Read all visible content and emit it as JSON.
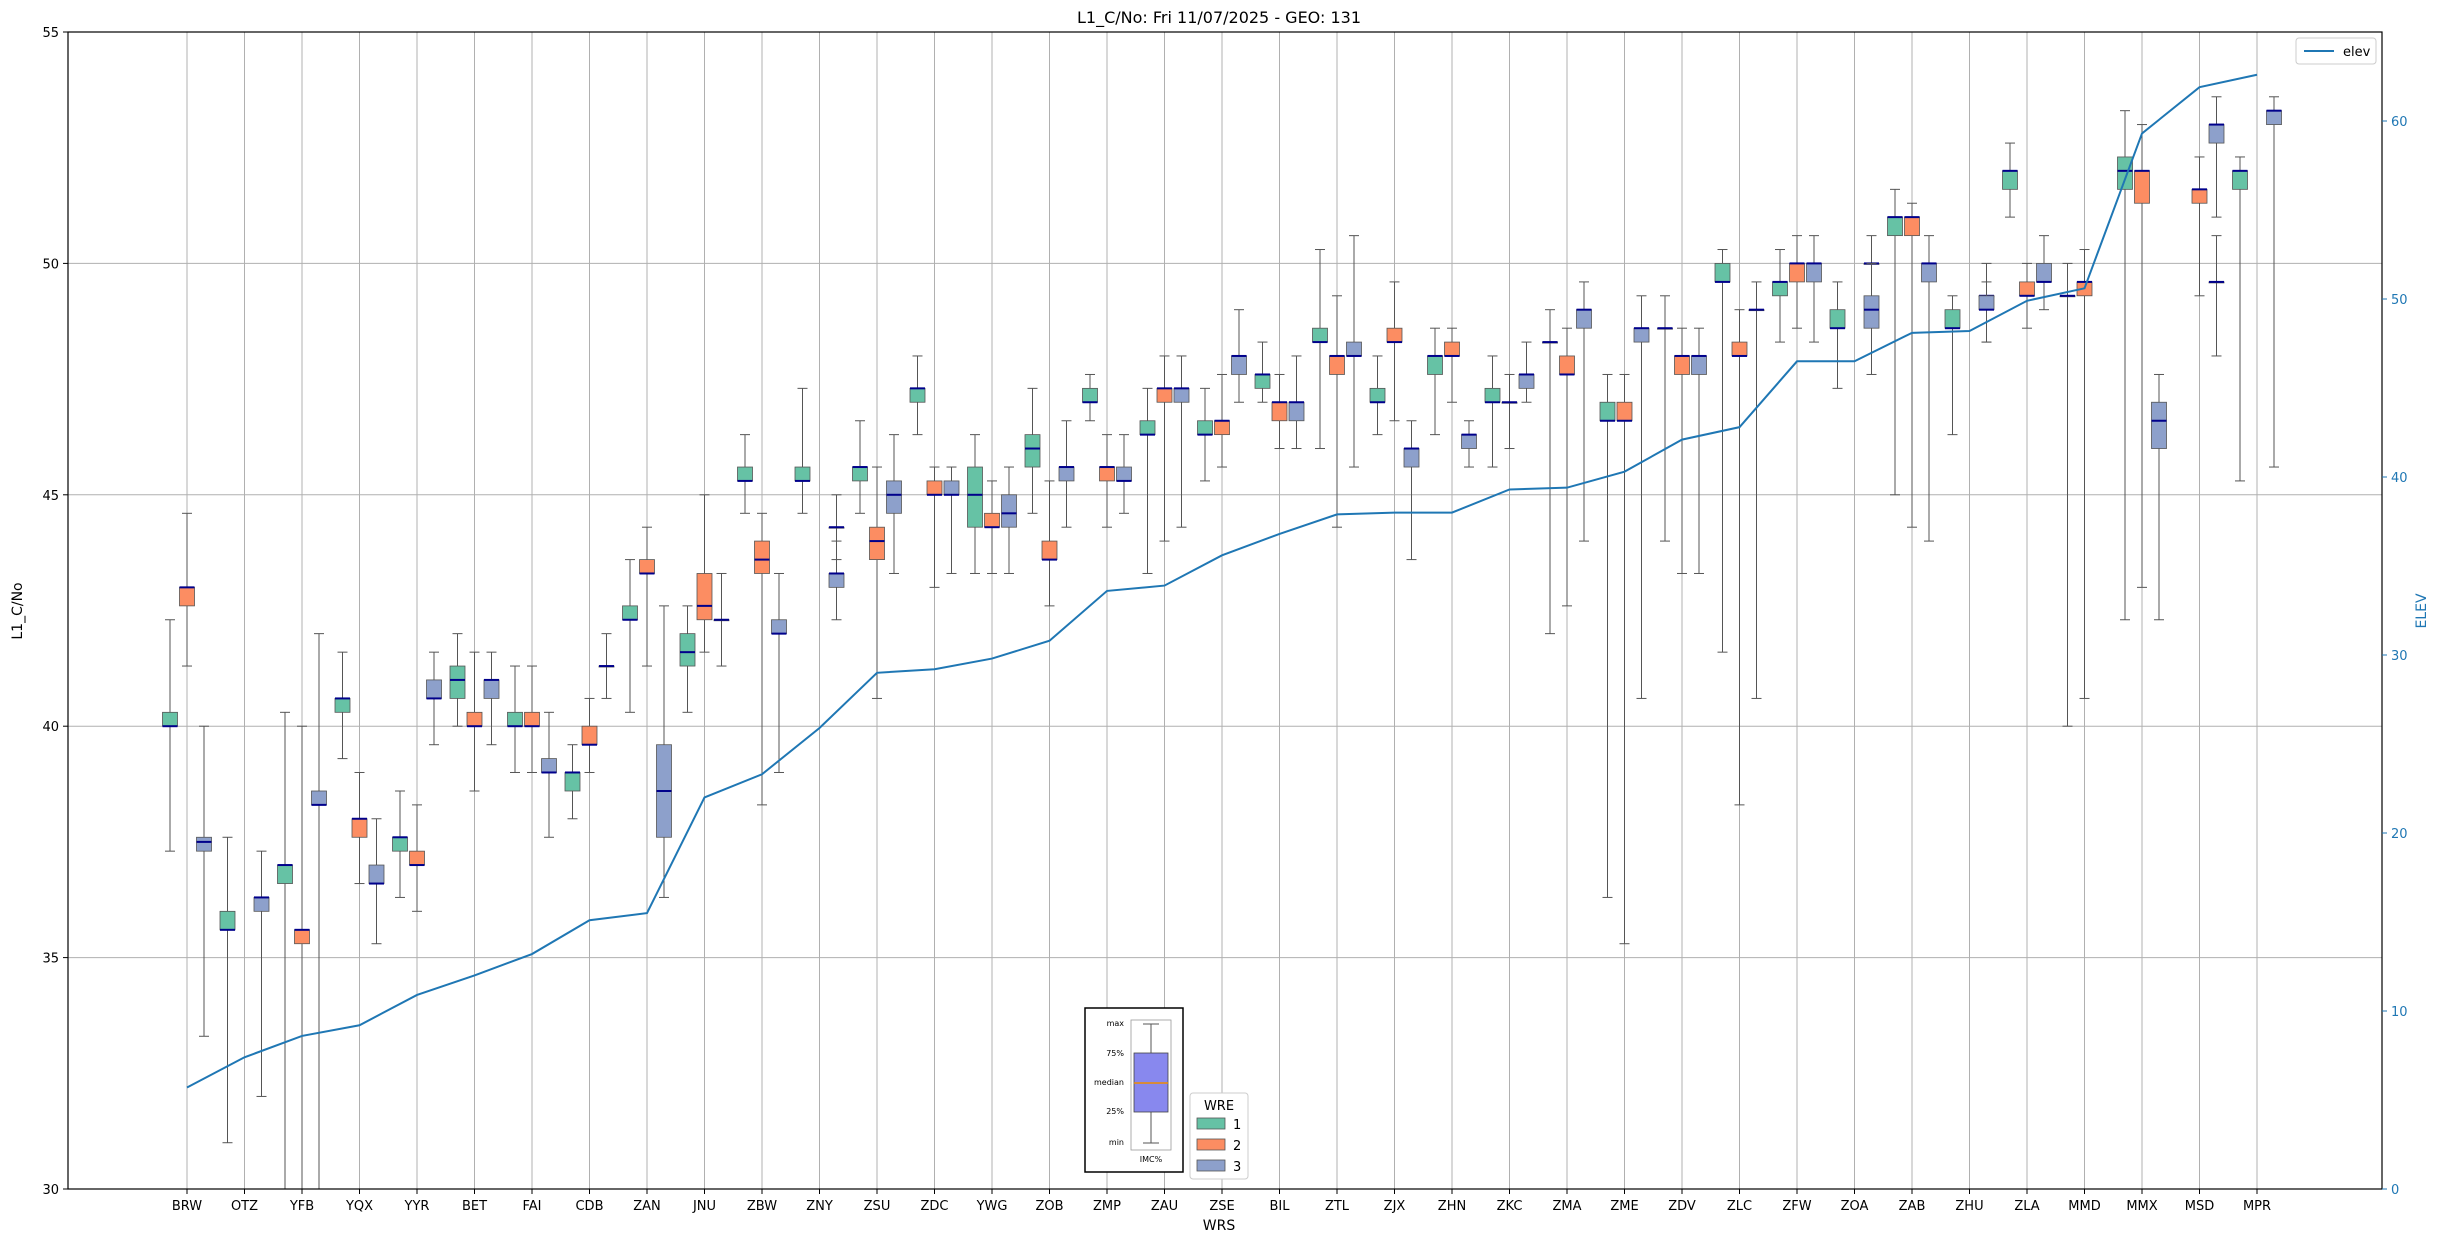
{
  "chart_data": {
    "type": "boxplot",
    "title": "L1_C/No: Fri 11/07/2025 - GEO: 131",
    "xlabel": "WRS",
    "ylabel": "L1_C/No",
    "y2label": "ELEV",
    "ylim": [
      30,
      55
    ],
    "y2lim": [
      0,
      65
    ],
    "yticks": [
      30,
      35,
      40,
      45,
      50,
      55
    ],
    "y2ticks": [
      0,
      10,
      20,
      30,
      40,
      50,
      60
    ],
    "grid": true,
    "categories": [
      "BRW",
      "OTZ",
      "YFB",
      "YQX",
      "YYR",
      "BET",
      "FAI",
      "CDB",
      "ZAN",
      "JNU",
      "ZBW",
      "ZNY",
      "ZSU",
      "ZDC",
      "YWG",
      "ZOB",
      "ZMP",
      "ZAU",
      "ZSE",
      "BIL",
      "ZTL",
      "ZJX",
      "ZHN",
      "ZKC",
      "ZMA",
      "ZME",
      "ZDV",
      "ZLC",
      "ZFW",
      "ZOA",
      "ZAB",
      "ZHU",
      "ZLA",
      "MMD",
      "MMX",
      "MSD",
      "MPR"
    ],
    "wre_colors": {
      "1": "#66c2a5",
      "2": "#fc8d62",
      "3": "#8da0cb"
    },
    "median_color": "#00008b",
    "elev_color": "#1f77b4",
    "boxes": [
      {
        "cat": "BRW",
        "wre": "1",
        "min": 37.3,
        "q1": 40.0,
        "median": 40.0,
        "q3": 40.3,
        "max": 42.3
      },
      {
        "cat": "BRW",
        "wre": "2",
        "min": 41.3,
        "q1": 42.6,
        "median": 43.0,
        "q3": 43.0,
        "max": 44.6
      },
      {
        "cat": "BRW",
        "wre": "3",
        "min": 33.3,
        "q1": 37.3,
        "median": 37.5,
        "q3": 37.6,
        "max": 40.0
      },
      {
        "cat": "OTZ",
        "wre": "1",
        "min": 31.0,
        "q1": 35.6,
        "median": 35.6,
        "q3": 36.0,
        "max": 37.6
      },
      {
        "cat": "OTZ",
        "wre": "3",
        "min": 32.0,
        "q1": 36.0,
        "median": 36.3,
        "q3": 36.3,
        "max": 37.3
      },
      {
        "cat": "YFB",
        "wre": "1",
        "min": 30.0,
        "q1": 36.6,
        "median": 37.0,
        "q3": 37.0,
        "max": 40.3
      },
      {
        "cat": "YFB",
        "wre": "2",
        "min": 30.0,
        "q1": 35.3,
        "median": 35.6,
        "q3": 35.6,
        "max": 40.0
      },
      {
        "cat": "YFB",
        "wre": "3",
        "min": 30.0,
        "q1": 38.3,
        "median": 38.3,
        "q3": 38.6,
        "max": 42.0
      },
      {
        "cat": "YQX",
        "wre": "1",
        "min": 39.3,
        "q1": 40.3,
        "median": 40.6,
        "q3": 40.6,
        "max": 41.6
      },
      {
        "cat": "YQX",
        "wre": "2",
        "min": 36.6,
        "q1": 37.6,
        "median": 38.0,
        "q3": 38.0,
        "max": 39.0
      },
      {
        "cat": "YQX",
        "wre": "3",
        "min": 35.3,
        "q1": 36.6,
        "median": 36.6,
        "q3": 37.0,
        "max": 38.0
      },
      {
        "cat": "YYR",
        "wre": "1",
        "min": 36.3,
        "q1": 37.3,
        "median": 37.6,
        "q3": 37.6,
        "max": 38.6
      },
      {
        "cat": "YYR",
        "wre": "2",
        "min": 36.0,
        "q1": 37.0,
        "median": 37.0,
        "q3": 37.3,
        "max": 38.3
      },
      {
        "cat": "YYR",
        "wre": "3",
        "min": 39.6,
        "q1": 40.6,
        "median": 40.6,
        "q3": 41.0,
        "max": 41.6
      },
      {
        "cat": "BET",
        "wre": "1",
        "min": 40.0,
        "q1": 40.6,
        "median": 41.0,
        "q3": 41.3,
        "max": 42.0
      },
      {
        "cat": "BET",
        "wre": "2",
        "min": 38.6,
        "q1": 40.0,
        "median": 40.0,
        "q3": 40.3,
        "max": 41.6
      },
      {
        "cat": "BET",
        "wre": "3",
        "min": 39.6,
        "q1": 40.6,
        "median": 41.0,
        "q3": 41.0,
        "max": 41.6
      },
      {
        "cat": "FAI",
        "wre": "1",
        "min": 39.0,
        "q1": 40.0,
        "median": 40.0,
        "q3": 40.3,
        "max": 41.3
      },
      {
        "cat": "FAI",
        "wre": "2",
        "min": 39.0,
        "q1": 40.0,
        "median": 40.0,
        "q3": 40.3,
        "max": 41.3
      },
      {
        "cat": "FAI",
        "wre": "3",
        "min": 37.6,
        "q1": 39.0,
        "median": 39.0,
        "q3": 39.3,
        "max": 40.3
      },
      {
        "cat": "CDB",
        "wre": "1",
        "min": 38.0,
        "q1": 38.6,
        "median": 39.0,
        "q3": 39.0,
        "max": 39.6
      },
      {
        "cat": "CDB",
        "wre": "2",
        "min": 39.0,
        "q1": 39.6,
        "median": 39.6,
        "q3": 40.0,
        "max": 40.6
      },
      {
        "cat": "CDB",
        "wre": "3",
        "min": 40.6,
        "q1": 41.3,
        "median": 41.3,
        "q3": 41.3,
        "max": 42.0
      },
      {
        "cat": "ZAN",
        "wre": "1",
        "min": 40.3,
        "q1": 42.3,
        "median": 42.3,
        "q3": 42.6,
        "max": 43.6
      },
      {
        "cat": "ZAN",
        "wre": "2",
        "min": 41.3,
        "q1": 43.3,
        "median": 43.3,
        "q3": 43.6,
        "max": 44.3
      },
      {
        "cat": "ZAN",
        "wre": "3",
        "min": 36.3,
        "q1": 37.6,
        "median": 38.6,
        "q3": 39.6,
        "max": 42.6
      },
      {
        "cat": "JNU",
        "wre": "1",
        "min": 40.3,
        "q1": 41.3,
        "median": 41.6,
        "q3": 42.0,
        "max": 42.6
      },
      {
        "cat": "JNU",
        "wre": "2",
        "min": 41.6,
        "q1": 42.3,
        "median": 42.6,
        "q3": 43.3,
        "max": 45.0
      },
      {
        "cat": "JNU",
        "wre": "3",
        "min": 41.3,
        "q1": 42.3,
        "median": 42.3,
        "q3": 42.3,
        "max": 43.3
      },
      {
        "cat": "ZBW",
        "wre": "1",
        "min": 44.6,
        "q1": 45.3,
        "median": 45.3,
        "q3": 45.6,
        "max": 46.3
      },
      {
        "cat": "ZBW",
        "wre": "2",
        "min": 38.3,
        "q1": 43.3,
        "median": 43.6,
        "q3": 44.0,
        "max": 44.6
      },
      {
        "cat": "ZBW",
        "wre": "3",
        "min": 39.0,
        "q1": 42.0,
        "median": 42.0,
        "q3": 42.3,
        "max": 43.3
      },
      {
        "cat": "ZNY",
        "wre": "1",
        "min": 44.6,
        "q1": 45.3,
        "median": 45.3,
        "q3": 45.6,
        "max": 47.3
      },
      {
        "cat": "ZNY",
        "wre": "3",
        "min": 43.6,
        "q1": 44.3,
        "median": 44.3,
        "q3": 44.3,
        "max": 45.0
      },
      {
        "cat": "ZNY",
        "wre": "3",
        "min": 42.3,
        "q1": 43.0,
        "median": 43.3,
        "q3": 43.3,
        "max": 44.0
      },
      {
        "cat": "ZSU",
        "wre": "1",
        "min": 44.6,
        "q1": 45.3,
        "median": 45.6,
        "q3": 45.6,
        "max": 46.6
      },
      {
        "cat": "ZSU",
        "wre": "2",
        "min": 40.6,
        "q1": 43.6,
        "median": 44.0,
        "q3": 44.3,
        "max": 45.6
      },
      {
        "cat": "ZSU",
        "wre": "3",
        "min": 43.3,
        "q1": 44.6,
        "median": 45.0,
        "q3": 45.3,
        "max": 46.3
      },
      {
        "cat": "ZDC",
        "wre": "1",
        "min": 46.3,
        "q1": 47.0,
        "median": 47.3,
        "q3": 47.3,
        "max": 48.0
      },
      {
        "cat": "ZDC",
        "wre": "2",
        "min": 43.0,
        "q1": 45.0,
        "median": 45.0,
        "q3": 45.3,
        "max": 45.6
      },
      {
        "cat": "ZDC",
        "wre": "3",
        "min": 43.3,
        "q1": 45.0,
        "median": 45.0,
        "q3": 45.3,
        "max": 45.6
      },
      {
        "cat": "YWG",
        "wre": "1",
        "min": 43.3,
        "q1": 44.3,
        "median": 45.0,
        "q3": 45.6,
        "max": 46.3
      },
      {
        "cat": "YWG",
        "wre": "2",
        "min": 43.3,
        "q1": 44.3,
        "median": 44.3,
        "q3": 44.6,
        "max": 45.3
      },
      {
        "cat": "YWG",
        "wre": "3",
        "min": 43.3,
        "q1": 44.3,
        "median": 44.6,
        "q3": 45.0,
        "max": 45.6
      },
      {
        "cat": "ZOB",
        "wre": "1",
        "min": 44.6,
        "q1": 45.6,
        "median": 46.0,
        "q3": 46.3,
        "max": 47.3
      },
      {
        "cat": "ZOB",
        "wre": "2",
        "min": 42.6,
        "q1": 43.6,
        "median": 43.6,
        "q3": 44.0,
        "max": 45.3
      },
      {
        "cat": "ZOB",
        "wre": "3",
        "min": 44.3,
        "q1": 45.3,
        "median": 45.6,
        "q3": 45.6,
        "max": 46.6
      },
      {
        "cat": "ZMP",
        "wre": "1",
        "min": 46.6,
        "q1": 47.0,
        "median": 47.0,
        "q3": 47.3,
        "max": 47.6
      },
      {
        "cat": "ZMP",
        "wre": "2",
        "min": 44.3,
        "q1": 45.3,
        "median": 45.6,
        "q3": 45.6,
        "max": 46.3
      },
      {
        "cat": "ZMP",
        "wre": "3",
        "min": 44.6,
        "q1": 45.3,
        "median": 45.3,
        "q3": 45.6,
        "max": 46.3
      },
      {
        "cat": "ZAU",
        "wre": "1",
        "min": 43.3,
        "q1": 46.3,
        "median": 46.3,
        "q3": 46.6,
        "max": 47.3
      },
      {
        "cat": "ZAU",
        "wre": "2",
        "min": 44.0,
        "q1": 47.0,
        "median": 47.3,
        "q3": 47.3,
        "max": 48.0
      },
      {
        "cat": "ZAU",
        "wre": "3",
        "min": 44.3,
        "q1": 47.0,
        "median": 47.3,
        "q3": 47.3,
        "max": 48.0
      },
      {
        "cat": "ZSE",
        "wre": "1",
        "min": 45.3,
        "q1": 46.3,
        "median": 46.3,
        "q3": 46.6,
        "max": 47.3
      },
      {
        "cat": "ZSE",
        "wre": "2",
        "min": 45.6,
        "q1": 46.3,
        "median": 46.6,
        "q3": 46.6,
        "max": 47.6
      },
      {
        "cat": "ZSE",
        "wre": "3",
        "min": 47.0,
        "q1": 47.6,
        "median": 48.0,
        "q3": 48.0,
        "max": 49.0
      },
      {
        "cat": "BIL",
        "wre": "1",
        "min": 47.0,
        "q1": 47.3,
        "median": 47.6,
        "q3": 47.6,
        "max": 48.3
      },
      {
        "cat": "BIL",
        "wre": "2",
        "min": 46.0,
        "q1": 46.6,
        "median": 47.0,
        "q3": 47.0,
        "max": 47.6
      },
      {
        "cat": "BIL",
        "wre": "3",
        "min": 46.0,
        "q1": 46.6,
        "median": 47.0,
        "q3": 47.0,
        "max": 48.0
      },
      {
        "cat": "ZTL",
        "wre": "1",
        "min": 46.0,
        "q1": 48.3,
        "median": 48.3,
        "q3": 48.6,
        "max": 50.3
      },
      {
        "cat": "ZTL",
        "wre": "2",
        "min": 44.3,
        "q1": 47.6,
        "median": 48.0,
        "q3": 48.0,
        "max": 49.3
      },
      {
        "cat": "ZTL",
        "wre": "3",
        "min": 45.6,
        "q1": 48.0,
        "median": 48.0,
        "q3": 48.3,
        "max": 50.6
      },
      {
        "cat": "ZJX",
        "wre": "1",
        "min": 46.3,
        "q1": 47.0,
        "median": 47.0,
        "q3": 47.3,
        "max": 48.0
      },
      {
        "cat": "ZJX",
        "wre": "2",
        "min": 46.6,
        "q1": 48.3,
        "median": 48.3,
        "q3": 48.6,
        "max": 49.6
      },
      {
        "cat": "ZJX",
        "wre": "3",
        "min": 43.6,
        "q1": 45.6,
        "median": 46.0,
        "q3": 46.0,
        "max": 46.6
      },
      {
        "cat": "ZHN",
        "wre": "1",
        "min": 46.3,
        "q1": 47.6,
        "median": 48.0,
        "q3": 48.0,
        "max": 48.6
      },
      {
        "cat": "ZHN",
        "wre": "2",
        "min": 47.0,
        "q1": 48.0,
        "median": 48.0,
        "q3": 48.3,
        "max": 48.6
      },
      {
        "cat": "ZHN",
        "wre": "3",
        "min": 45.6,
        "q1": 46.0,
        "median": 46.3,
        "q3": 46.3,
        "max": 46.6
      },
      {
        "cat": "ZKC",
        "wre": "1",
        "min": 45.6,
        "q1": 47.0,
        "median": 47.0,
        "q3": 47.3,
        "max": 48.0
      },
      {
        "cat": "ZKC",
        "wre": "2",
        "min": 46.0,
        "q1": 47.0,
        "median": 47.0,
        "q3": 47.0,
        "max": 47.6
      },
      {
        "cat": "ZKC",
        "wre": "3",
        "min": 47.0,
        "q1": 47.3,
        "median": 47.6,
        "q3": 47.6,
        "max": 48.3
      },
      {
        "cat": "ZMA",
        "wre": "1",
        "min": 42.0,
        "q1": 48.3,
        "median": 48.3,
        "q3": 48.3,
        "max": 49.0
      },
      {
        "cat": "ZMA",
        "wre": "2",
        "min": 42.6,
        "q1": 47.6,
        "median": 47.6,
        "q3": 48.0,
        "max": 48.6
      },
      {
        "cat": "ZMA",
        "wre": "3",
        "min": 44.0,
        "q1": 48.6,
        "median": 49.0,
        "q3": 49.0,
        "max": 49.6
      },
      {
        "cat": "ZME",
        "wre": "1",
        "min": 36.3,
        "q1": 46.6,
        "median": 46.6,
        "q3": 47.0,
        "max": 47.6
      },
      {
        "cat": "ZME",
        "wre": "2",
        "min": 35.3,
        "q1": 46.6,
        "median": 46.6,
        "q3": 47.0,
        "max": 47.6
      },
      {
        "cat": "ZME",
        "wre": "3",
        "min": 40.6,
        "q1": 48.3,
        "median": 48.6,
        "q3": 48.6,
        "max": 49.3
      },
      {
        "cat": "ZDV",
        "wre": "1",
        "min": 44.0,
        "q1": 48.6,
        "median": 48.6,
        "q3": 48.6,
        "max": 49.3
      },
      {
        "cat": "ZDV",
        "wre": "2",
        "min": 43.3,
        "q1": 47.6,
        "median": 48.0,
        "q3": 48.0,
        "max": 48.6
      },
      {
        "cat": "ZDV",
        "wre": "3",
        "min": 43.3,
        "q1": 47.6,
        "median": 48.0,
        "q3": 48.0,
        "max": 48.6
      },
      {
        "cat": "ZLC",
        "wre": "1",
        "min": 41.6,
        "q1": 49.6,
        "median": 49.6,
        "q3": 50.0,
        "max": 50.3
      },
      {
        "cat": "ZLC",
        "wre": "2",
        "min": 38.3,
        "q1": 48.0,
        "median": 48.0,
        "q3": 48.3,
        "max": 49.0
      },
      {
        "cat": "ZLC",
        "wre": "3",
        "min": 40.6,
        "q1": 49.0,
        "median": 49.0,
        "q3": 49.0,
        "max": 49.6
      },
      {
        "cat": "ZFW",
        "wre": "1",
        "min": 48.3,
        "q1": 49.3,
        "median": 49.6,
        "q3": 49.6,
        "max": 50.3
      },
      {
        "cat": "ZFW",
        "wre": "2",
        "min": 48.6,
        "q1": 49.6,
        "median": 50.0,
        "q3": 50.0,
        "max": 50.6
      },
      {
        "cat": "ZFW",
        "wre": "3",
        "min": 48.3,
        "q1": 49.6,
        "median": 50.0,
        "q3": 50.0,
        "max": 50.6
      },
      {
        "cat": "ZOA",
        "wre": "1",
        "min": 47.3,
        "q1": 48.6,
        "median": 48.6,
        "q3": 49.0,
        "max": 49.6
      },
      {
        "cat": "ZOA",
        "wre": "3",
        "min": 49.0,
        "q1": 50.0,
        "median": 50.0,
        "q3": 50.0,
        "max": 50.6
      },
      {
        "cat": "ZOA",
        "wre": "3",
        "min": 47.6,
        "q1": 48.6,
        "median": 49.0,
        "q3": 49.3,
        "max": 50.0
      },
      {
        "cat": "ZAB",
        "wre": "1",
        "min": 45.0,
        "q1": 50.6,
        "median": 51.0,
        "q3": 51.0,
        "max": 51.6
      },
      {
        "cat": "ZAB",
        "wre": "2",
        "min": 44.3,
        "q1": 50.6,
        "median": 51.0,
        "q3": 51.0,
        "max": 51.3
      },
      {
        "cat": "ZAB",
        "wre": "3",
        "min": 44.0,
        "q1": 49.6,
        "median": 50.0,
        "q3": 50.0,
        "max": 50.6
      },
      {
        "cat": "ZHU",
        "wre": "1",
        "min": 46.3,
        "q1": 48.6,
        "median": 48.6,
        "q3": 49.0,
        "max": 49.3
      },
      {
        "cat": "ZHU",
        "wre": "3",
        "min": 48.3,
        "q1": 49.3,
        "median": 49.3,
        "q3": 49.3,
        "max": 50.0
      },
      {
        "cat": "ZHU",
        "wre": "3",
        "min": 48.3,
        "q1": 49.0,
        "median": 49.0,
        "q3": 49.3,
        "max": 49.6
      },
      {
        "cat": "ZLA",
        "wre": "1",
        "min": 51.0,
        "q1": 51.6,
        "median": 52.0,
        "q3": 52.0,
        "max": 52.6
      },
      {
        "cat": "ZLA",
        "wre": "2",
        "min": 48.6,
        "q1": 49.3,
        "median": 49.3,
        "q3": 49.6,
        "max": 50.0
      },
      {
        "cat": "ZLA",
        "wre": "3",
        "min": 49.0,
        "q1": 49.6,
        "median": 49.6,
        "q3": 50.0,
        "max": 50.6
      },
      {
        "cat": "MMD",
        "wre": "1",
        "min": 40.0,
        "q1": 49.3,
        "median": 49.3,
        "q3": 49.3,
        "max": 50.0
      },
      {
        "cat": "MMD",
        "wre": "2",
        "min": 40.6,
        "q1": 49.3,
        "median": 49.6,
        "q3": 49.6,
        "max": 50.3
      },
      {
        "cat": "MMX",
        "wre": "1",
        "min": 42.3,
        "q1": 51.6,
        "median": 52.0,
        "q3": 52.3,
        "max": 53.3
      },
      {
        "cat": "MMX",
        "wre": "2",
        "min": 43.0,
        "q1": 51.3,
        "median": 52.0,
        "q3": 52.0,
        "max": 53.0
      },
      {
        "cat": "MMX",
        "wre": "3",
        "min": 42.3,
        "q1": 46.0,
        "median": 46.6,
        "q3": 47.0,
        "max": 47.6
      },
      {
        "cat": "MSD",
        "wre": "3",
        "min": 48.0,
        "q1": 49.6,
        "median": 49.6,
        "q3": 49.6,
        "max": 50.6
      },
      {
        "cat": "MSD",
        "wre": "2",
        "min": 49.3,
        "q1": 51.3,
        "median": 51.6,
        "q3": 51.6,
        "max": 52.3
      },
      {
        "cat": "MSD",
        "wre": "3",
        "min": 51.0,
        "q1": 52.6,
        "median": 53.0,
        "q3": 53.0,
        "max": 53.6
      },
      {
        "cat": "MPR",
        "wre": "1",
        "min": 45.3,
        "q1": 51.6,
        "median": 52.0,
        "q3": 52.0,
        "max": 52.3
      },
      {
        "cat": "MPR",
        "wre": "3",
        "min": 45.6,
        "q1": 53.0,
        "median": 53.3,
        "q3": 53.3,
        "max": 53.6
      }
    ],
    "elev_series": {
      "name": "elev",
      "values": [
        5.7,
        7.4,
        8.6,
        9.2,
        10.9,
        12.0,
        13.2,
        15.1,
        15.5,
        22.0,
        23.3,
        25.9,
        29.0,
        29.2,
        29.8,
        30.8,
        33.6,
        33.9,
        35.6,
        36.8,
        37.9,
        38.0,
        38.0,
        39.3,
        39.4,
        40.3,
        42.1,
        42.8,
        46.5,
        46.5,
        48.1,
        48.2,
        49.9,
        50.6,
        59.3,
        61.9,
        62.6
      ]
    },
    "legend_elev": {
      "label": "elev",
      "placement": "top-right"
    },
    "legend_wre": {
      "title": "WRE",
      "entries": [
        "1",
        "2",
        "3"
      ],
      "placement": "bottom-center"
    },
    "inset_labels": [
      "max",
      "75%",
      "median",
      "25%",
      "min"
    ],
    "inset_caption": "IMC%"
  }
}
